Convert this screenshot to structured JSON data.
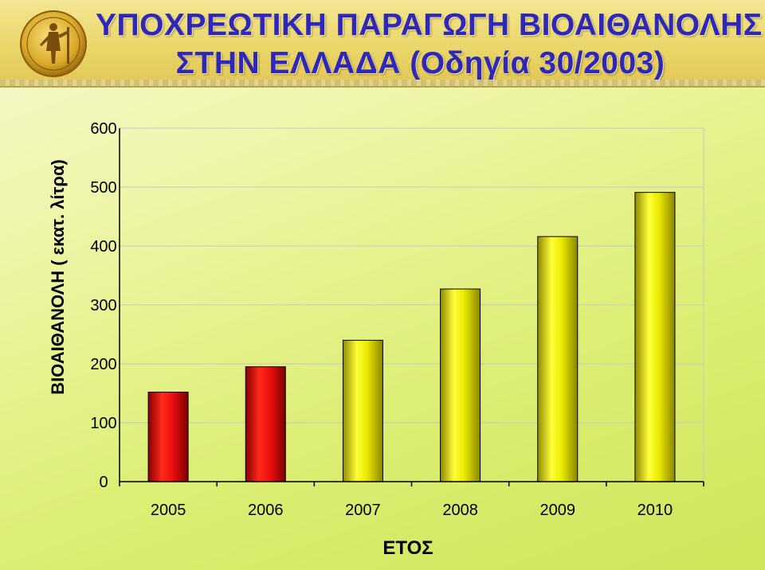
{
  "header": {
    "title_line1": "ΥΠΟΧΡΕΩΤΙΚΗ ΠΑΡΑΓΩΓΗ ΒΙΟΑΙΘΑΝΟΛΗΣ",
    "title_line2": "ΣΤΗΝ ΕΛΛΑΔΑ (Οδηγία 30/2003)",
    "logo_icon": "athena-seal-icon"
  },
  "colors": {
    "title": "#2f27b8",
    "bar_red": "#e01010",
    "bar_yellow": "#e6e600",
    "gridline": "#c8c8c8"
  },
  "chart_data": {
    "type": "bar",
    "categories": [
      "2005",
      "2006",
      "2007",
      "2008",
      "2009",
      "2010"
    ],
    "values": [
      152,
      195,
      240,
      327,
      416,
      491
    ],
    "bar_colors": [
      "red",
      "red",
      "yellow",
      "yellow",
      "yellow",
      "yellow"
    ],
    "xlabel": "ΕΤΟΣ",
    "ylabel": "ΒΙΟΑΙΘΑΝΟΛΗ ( εκατ. λίτρα)",
    "yticks": [
      "0",
      "100",
      "200",
      "300",
      "400",
      "500",
      "600"
    ],
    "ylim": [
      0,
      600
    ],
    "grid": true,
    "legend": "none"
  }
}
